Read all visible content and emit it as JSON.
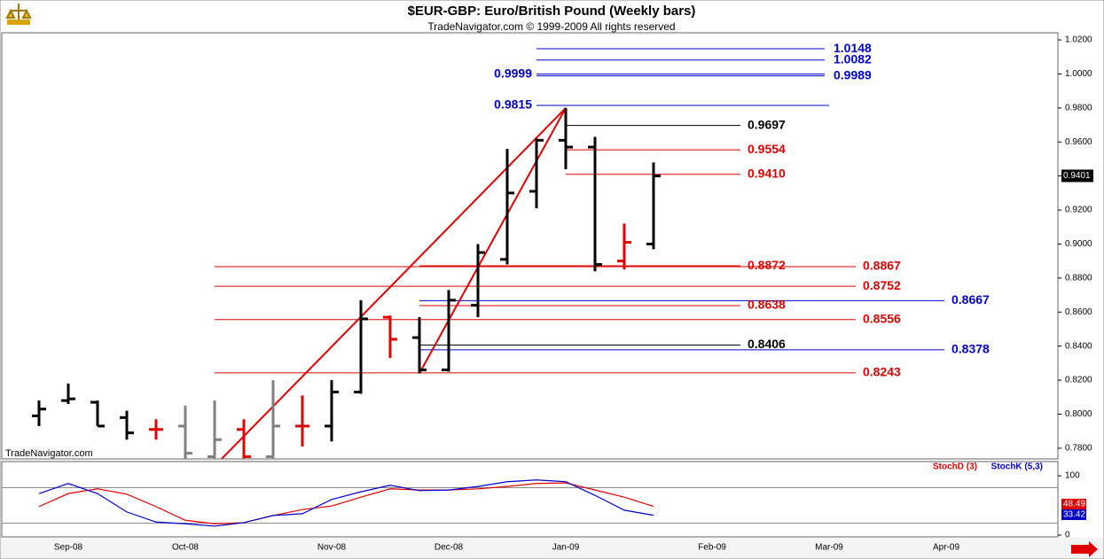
{
  "chart_data": [
    {
      "type": "ohlc",
      "title": "$EUR-GBP:  Euro/British Pound  (Weekly bars)",
      "subtitle": "TradeNavigator.com © 1999-2009 All rights reserved",
      "watermark": "TradeNavigator.com",
      "open": [
        0.799,
        0.808,
        0.807,
        0.798,
        0.791,
        0.793,
        0.775,
        0.791,
        0.775,
        0.793,
        0.793,
        0.813,
        0.857,
        0.845,
        0.826,
        0.864,
        0.891,
        0.931,
        0.961,
        0.957,
        0.89,
        0.9,
        null,
        null,
        null,
        null,
        null,
        null,
        null,
        null,
        null,
        null,
        null,
        null,
        null
      ],
      "high": [
        0.808,
        0.818,
        0.808,
        0.802,
        0.797,
        0.805,
        0.808,
        0.797,
        0.82,
        0.811,
        0.82,
        0.867,
        0.858,
        0.857,
        0.873,
        0.9,
        0.956,
        0.962,
        0.98,
        0.963,
        0.912,
        0.948,
        null,
        null,
        null,
        null,
        null,
        null,
        null,
        null,
        null,
        null,
        null,
        null,
        null
      ],
      "low": [
        0.793,
        0.806,
        0.793,
        0.785,
        0.785,
        0.774,
        0.774,
        0.774,
        0.774,
        0.781,
        0.784,
        0.812,
        0.833,
        0.824,
        0.825,
        0.857,
        0.888,
        0.921,
        0.944,
        0.884,
        0.885,
        0.897,
        null,
        null,
        null,
        null,
        null,
        null,
        null,
        null,
        null,
        null,
        null,
        null,
        null
      ],
      "close": [
        0.803,
        0.809,
        0.793,
        0.789,
        0.791,
        0.777,
        0.785,
        0.775,
        0.793,
        0.793,
        0.813,
        0.856,
        0.844,
        0.826,
        0.867,
        0.895,
        0.93,
        0.961,
        0.957,
        0.888,
        0.901,
        0.94,
        null,
        null,
        null,
        null,
        null,
        null,
        null,
        null,
        null,
        null,
        null,
        null,
        null
      ],
      "bar_colors": [
        "#000000",
        "#000000",
        "#000000",
        "#000000",
        "#e00000",
        "#808080",
        "#808080",
        "#e00000",
        "#808080",
        "#e00000",
        "#000000",
        "#000000",
        "#e00000",
        "#000000",
        "#000000",
        "#000000",
        "#000000",
        "#000000",
        "#000000",
        "#000000",
        "#e00000",
        "#000000",
        null,
        null,
        null,
        null,
        null,
        null,
        null,
        null,
        null,
        null,
        null,
        null,
        null
      ],
      "ylim": [
        0.7737,
        1.0242
      ],
      "yticks": [
        {
          "value": 0.78,
          "label": "0.7800"
        },
        {
          "value": 0.8,
          "label": "0.8000"
        },
        {
          "value": 0.82,
          "label": "0.8200"
        },
        {
          "value": 0.84,
          "label": "0.8400"
        },
        {
          "value": 0.86,
          "label": "0.8600"
        },
        {
          "value": 0.88,
          "label": "0.8800"
        },
        {
          "value": 0.9,
          "label": "0.9000"
        },
        {
          "value": 0.92,
          "label": "0.9200"
        },
        {
          "value": 0.94,
          "label": "0.9400"
        },
        {
          "value": 0.96,
          "label": "0.9600"
        },
        {
          "value": 0.98,
          "label": "0.9800"
        },
        {
          "value": 1.0,
          "label": "1.0000"
        },
        {
          "value": 1.02,
          "label": "1.0200"
        }
      ],
      "levels": [
        {
          "value": 1.0148,
          "label": "1.0148",
          "color": "#0000cc"
        },
        {
          "value": 1.0082,
          "label": "1.0082",
          "color": "#0000cc"
        },
        {
          "value": 0.9999,
          "label": "0.9999",
          "color": "#0000cc"
        },
        {
          "value": 0.9989,
          "label": "0.9989",
          "color": "#0000cc"
        },
        {
          "value": 0.9815,
          "label": "0.9815",
          "color": "#0000cc"
        },
        {
          "value": 0.9697,
          "label": "0.9697",
          "color": "#000000"
        },
        {
          "value": 0.9554,
          "label": "0.9554",
          "color": "#e00000"
        },
        {
          "value": 0.941,
          "label": "0.9410",
          "color": "#e00000"
        },
        {
          "value": 0.8872,
          "label": "0.8872",
          "color": "#e00000"
        },
        {
          "value": 0.8867,
          "label": "0.8867",
          "color": "#e00000"
        },
        {
          "value": 0.8752,
          "label": "0.8752",
          "color": "#e00000"
        },
        {
          "value": 0.8667,
          "label": "0.8667",
          "color": "#0000cc"
        },
        {
          "value": 0.8638,
          "label": "0.8638",
          "color": "#e00000"
        },
        {
          "value": 0.8556,
          "label": "0.8556",
          "color": "#e00000"
        },
        {
          "value": 0.8406,
          "label": "0.8406",
          "color": "#000000"
        },
        {
          "value": 0.8378,
          "label": "0.8378",
          "color": "#0000cc"
        },
        {
          "value": 0.8243,
          "label": "0.8243",
          "color": "#e00000"
        }
      ],
      "trend_lines": [
        {
          "x": [
            13,
            18
          ],
          "y": [
            0.824,
            0.98
          ],
          "color": "#e00000"
        },
        {
          "x": [
            6.24,
            18
          ],
          "y": [
            0.7737,
            0.98
          ],
          "color": "#e00000"
        }
      ],
      "last_price": {
        "value": 0.9401,
        "label": "0.9401"
      }
    },
    {
      "type": "line",
      "categories": [
        null,
        "Sep-08",
        null,
        null,
        null,
        "Oct-08",
        null,
        null,
        null,
        null,
        "Nov-08",
        null,
        null,
        null,
        "Dec-08",
        null,
        null,
        null,
        "Jan-09",
        null,
        null,
        null,
        null,
        "Feb-09",
        null,
        null,
        null,
        "Mar-09",
        null,
        null,
        null,
        "Apr-09",
        null,
        null,
        null
      ],
      "series": [
        {
          "name": "StochD (3)",
          "color": "#e00000",
          "values": [
            48,
            70,
            78,
            69,
            48,
            25,
            19,
            21,
            33,
            43,
            49,
            64,
            78,
            76,
            76,
            78,
            82,
            87,
            88,
            76,
            64,
            48.49,
            null,
            null,
            null,
            null,
            null,
            null,
            null,
            null,
            null,
            null,
            null,
            null,
            null
          ]
        },
        {
          "name": "StochK (5,3)",
          "color": "#0000cc",
          "values": [
            70,
            87,
            70,
            39,
            22,
            19,
            15,
            21,
            33,
            36,
            60,
            73,
            84,
            75,
            76,
            82,
            90,
            93,
            90,
            67,
            42,
            33.42,
            null,
            null,
            null,
            null,
            null,
            null,
            null,
            null,
            null,
            null,
            null,
            null,
            null
          ]
        }
      ],
      "ylim": [
        -3,
        124
      ],
      "yticks": [
        0,
        100
      ],
      "reference_lines": [
        20,
        80
      ]
    }
  ]
}
